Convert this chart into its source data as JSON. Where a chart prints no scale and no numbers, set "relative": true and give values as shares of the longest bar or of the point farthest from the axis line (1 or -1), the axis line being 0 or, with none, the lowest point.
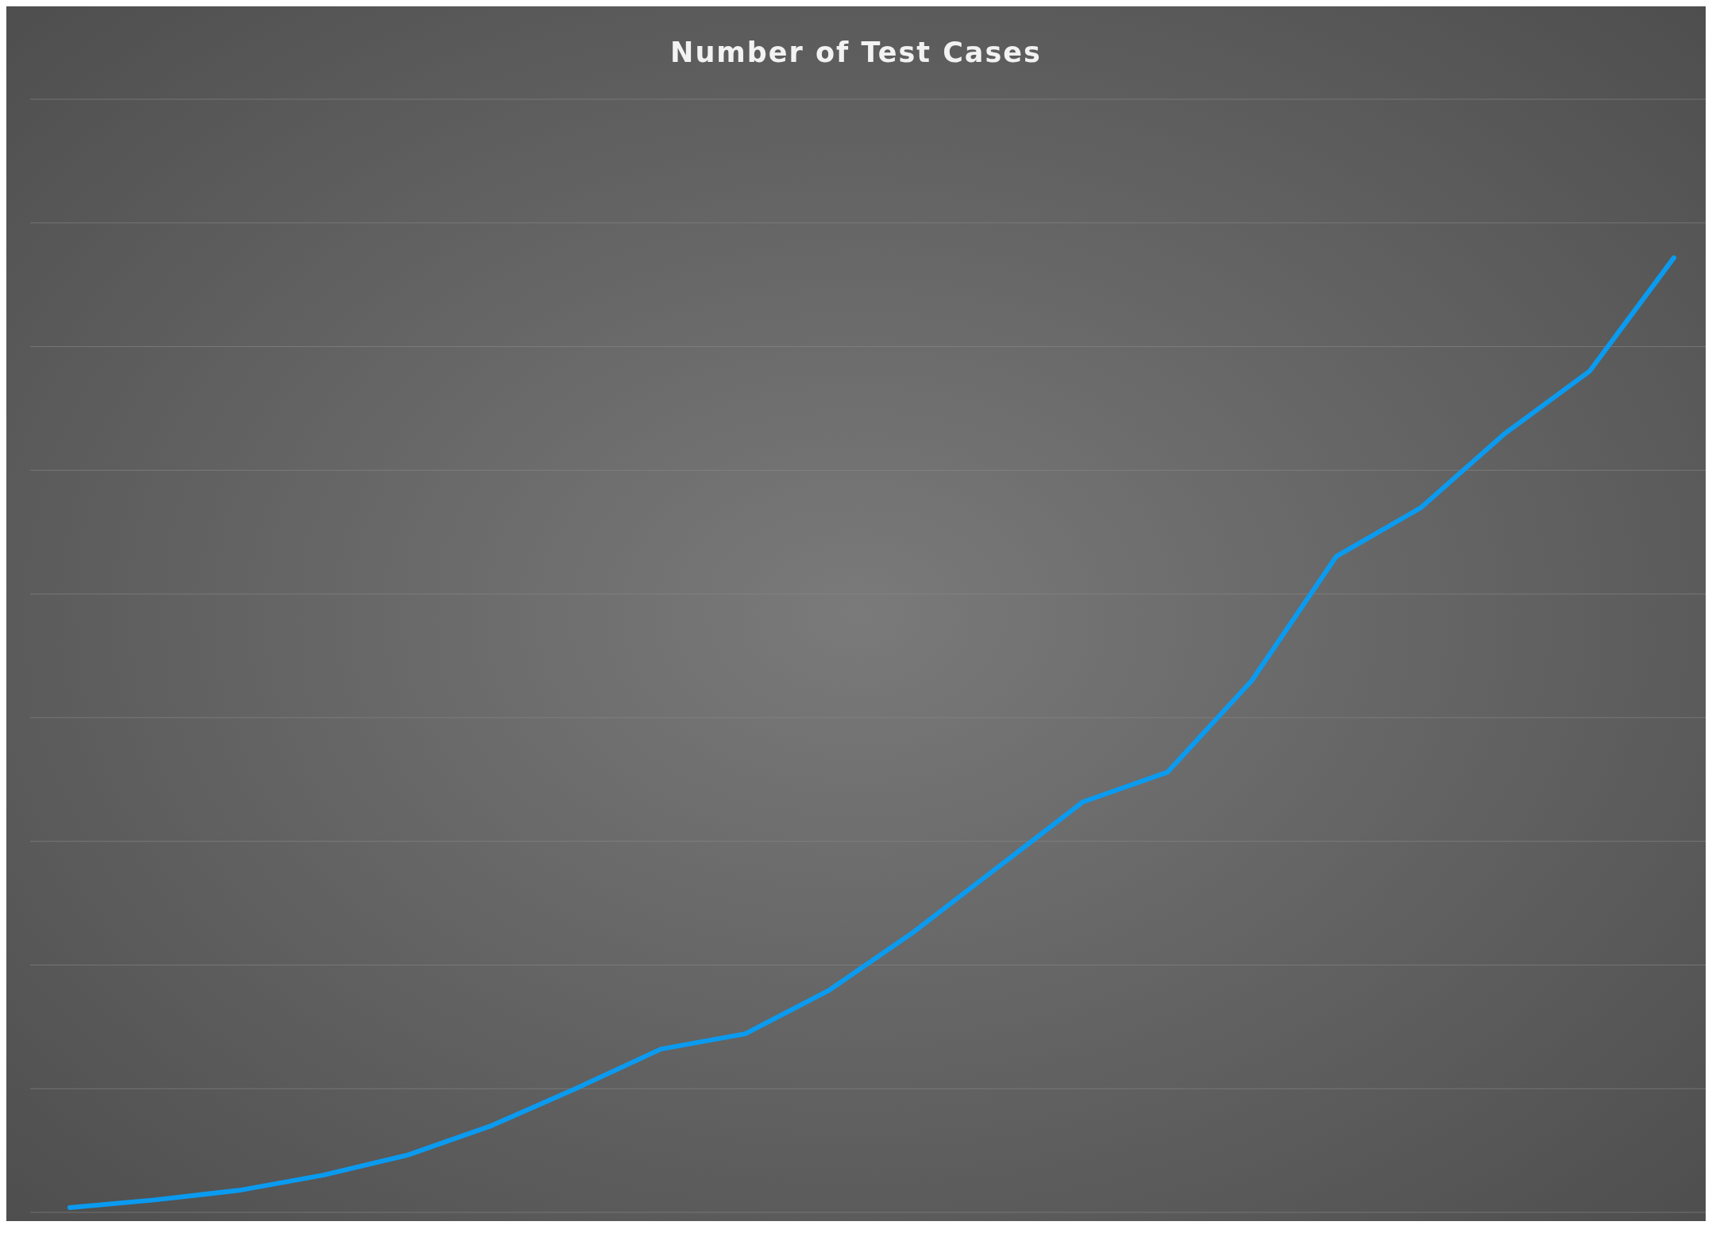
{
  "chart_data": {
    "type": "line",
    "title": "Number of Test Cases",
    "relative": true,
    "grid": "y",
    "legend": false,
    "marker": "none",
    "line_style": "solid",
    "categories": [
      null,
      null,
      null,
      null,
      null,
      null,
      null,
      null,
      null,
      null,
      null,
      null,
      null,
      null,
      null,
      null,
      null,
      null,
      null,
      null
    ],
    "series": [
      {
        "color": "#0a9bf0",
        "values": [
          0.005,
          0.013,
          0.023,
          0.039,
          0.06,
          0.091,
          0.13,
          0.171,
          0.187,
          0.233,
          0.294,
          0.362,
          0.43,
          0.461,
          0.557,
          0.687,
          0.738,
          0.816,
          0.881,
          1
        ]
      }
    ]
  }
}
